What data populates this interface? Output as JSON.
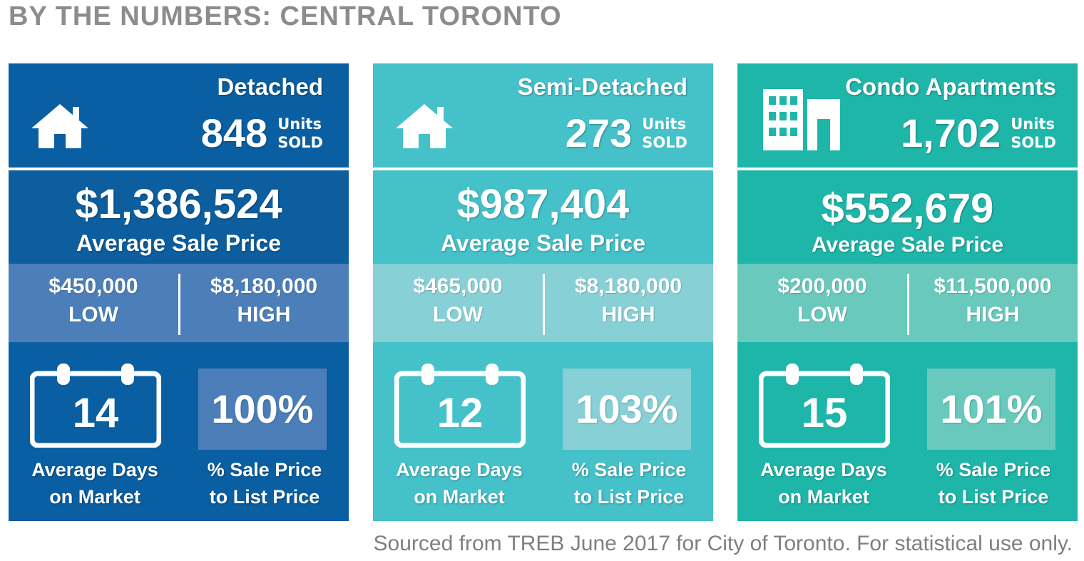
{
  "title": "BY THE NUMBERS: CENTRAL TORONTO",
  "source": "Sourced from TREB June 2017 for City of Toronto. For statistical use only.",
  "cards": [
    {
      "type": "Detached",
      "icon": "house-icon",
      "units": "848",
      "units_word1": "Units",
      "units_word2": "SOLD",
      "avg_price": "$1,386,524",
      "avg_price_label": "Average Sale Price",
      "low_value": "$450,000",
      "low_label": "LOW",
      "high_value": "$8,180,000",
      "high_label": "HIGH",
      "days": "14",
      "days_label_1": "Average Days",
      "days_label_2": "on Market",
      "pct": "100%",
      "pct_label_1": "% Sale Price",
      "pct_label_2": "to List Price",
      "colors": {
        "top": "#0a5fa2",
        "price": "#0c5e9f",
        "range": "#4c7fb9",
        "bottom": "#0a5fa2",
        "pctbox": "#4c7fb9"
      }
    },
    {
      "type": "Semi-Detached",
      "icon": "house-icon",
      "units": "273",
      "units_word1": "Units",
      "units_word2": "SOLD",
      "avg_price": "$987,404",
      "avg_price_label": "Average Sale Price",
      "low_value": "$465,000",
      "low_label": "LOW",
      "high_value": "$8,180,000",
      "high_label": "HIGH",
      "days": "12",
      "days_label_1": "Average Days",
      "days_label_2": "on Market",
      "pct": "103%",
      "pct_label_1": "% Sale Price",
      "pct_label_2": "to List Price",
      "colors": {
        "top": "#45c1c9",
        "price": "#45c1c9",
        "range": "#86d0d6",
        "bottom": "#45c1c9",
        "pctbox": "#86d0d6"
      }
    },
    {
      "type": "Condo Apartments",
      "icon": "building-icon",
      "units": "1,702",
      "units_word1": "Units",
      "units_word2": "SOLD",
      "avg_price": "$552,679",
      "avg_price_label": "Average Sale Price",
      "low_value": "$200,000",
      "low_label": "LOW",
      "high_value": "$11,500,000",
      "high_label": "HIGH",
      "days": "15",
      "days_label_1": "Average Days",
      "days_label_2": "on Market",
      "pct": "101%",
      "pct_label_1": "% Sale Price",
      "pct_label_2": "to List Price",
      "colors": {
        "top": "#1fb6aa",
        "price": "#1fb6aa",
        "range": "#69c9bd",
        "bottom": "#1fb6aa",
        "pctbox": "#69c9bd"
      }
    }
  ]
}
